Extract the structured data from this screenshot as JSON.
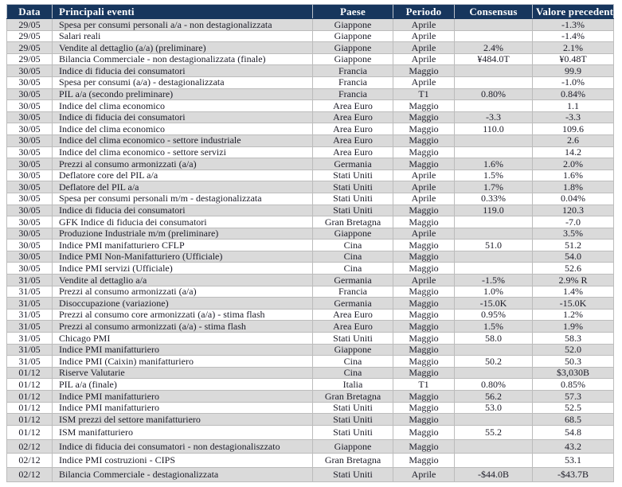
{
  "colors": {
    "header_bg": "#17365d",
    "header_text": "#ffffff",
    "row_alt_bg": "#dadada",
    "row_base_bg": "#ffffff",
    "grid_border": "#bcbcbc",
    "body_text": "#1b1b27"
  },
  "table": {
    "columns": [
      {
        "key": "data",
        "label": "Data"
      },
      {
        "key": "evento",
        "label": "Principali eventi"
      },
      {
        "key": "paese",
        "label": "Paese"
      },
      {
        "key": "periodo",
        "label": "Periodo"
      },
      {
        "key": "consensus",
        "label": "Consensus"
      },
      {
        "key": "valore",
        "label": "Valore precedente"
      }
    ],
    "rows": [
      [
        "29/05",
        "Spesa per consumi personali a/a - non destagionalizzata",
        "Giappone",
        "Aprile",
        "",
        "-1.3%"
      ],
      [
        "29/05",
        "Salari reali",
        "Giappone",
        "Aprile",
        "",
        "-1.4%"
      ],
      [
        "29/05",
        "Vendite al dettaglio (a/a)  (preliminare)",
        "Giappone",
        "Aprile",
        "2.4%",
        "2.1%"
      ],
      [
        "29/05",
        "Bilancia Commerciale -  non destagionalizzata (finale)",
        "Giappone",
        "Aprile",
        "¥484.0T",
        "¥0.48T"
      ],
      [
        "30/05",
        "Indice di fiducia dei consumatori",
        "Francia",
        "Maggio",
        "",
        "99.9"
      ],
      [
        "30/05",
        "Spesa per consumi  (a/a) - destagionalizzata",
        "Francia",
        "Aprile",
        "",
        "-1.0%"
      ],
      [
        "30/05",
        "PIL a/a (secondo preliminare)",
        "Francia",
        "T1",
        "0.80%",
        "0.84%"
      ],
      [
        "30/05",
        "Indice del clima economico",
        "Area Euro",
        "Maggio",
        "",
        "1.1"
      ],
      [
        "30/05",
        "Indice di fiducia dei consumatori",
        "Area Euro",
        "Maggio",
        "-3.3",
        "-3.3"
      ],
      [
        "30/05",
        "Indice del clima economico",
        "Area Euro",
        "Maggio",
        "110.0",
        "109.6"
      ],
      [
        "30/05",
        "Indice del clima economico - settore industriale",
        "Area Euro",
        "Maggio",
        "",
        "2.6"
      ],
      [
        "30/05",
        "Indice del clima economico - settore servizi",
        "Area Euro",
        "Maggio",
        "",
        "14.2"
      ],
      [
        "30/05",
        "Prezzi al consumo armonizzati (a/a)",
        "Germania",
        "Maggio",
        "1.6%",
        "2.0%"
      ],
      [
        "30/05",
        "Deflatore  core del PIL a/a",
        "Stati Uniti",
        "Aprile",
        "1.5%",
        "1.6%"
      ],
      [
        "30/05",
        "Deflatore del PIL a/a",
        "Stati Uniti",
        "Aprile",
        "1.7%",
        "1.8%"
      ],
      [
        "30/05",
        "Spesa per consumi personali m/m - destagionalizzata",
        "Stati Uniti",
        "Aprile",
        "0.33%",
        "0.04%"
      ],
      [
        "30/05",
        "Indice di fiducia dei consumatori",
        "Stati Uniti",
        "Maggio",
        "119.0",
        "120.3"
      ],
      [
        "30/05",
        "GFK Indice di fiducia dei consumatori",
        "Gran Bretagna",
        "Maggio",
        "",
        "-7.0"
      ],
      [
        "30/05",
        "Produzione Industriale m/m (preliminare)",
        "Giappone",
        "Aprile",
        "",
        "3.5%"
      ],
      [
        "30/05",
        "Indice PMI manifatturiero CFLP",
        "Cina",
        "Maggio",
        "51.0",
        "51.2"
      ],
      [
        "30/05",
        "Indice PMI  Non-Manifatturiero (Ufficiale)",
        "Cina",
        "Maggio",
        "",
        "54.0"
      ],
      [
        "30/05",
        "Indice PMI  servizi (Ufficiale)",
        "Cina",
        "Maggio",
        "",
        "52.6"
      ],
      [
        "31/05",
        "Vendite al dettaglio a/a",
        "Germania",
        "Aprile",
        "-1.5%",
        "2.9% R"
      ],
      [
        "31/05",
        "Prezzi al consumo armonizzati (a/a)",
        "Francia",
        "Maggio",
        "1.0%",
        "1.4%"
      ],
      [
        "31/05",
        "Disoccupazione (variazione)",
        "Germania",
        "Maggio",
        "-15.0K",
        "-15.0K"
      ],
      [
        "31/05",
        "Prezzi al consumo core armonizzati (a/a) - stima flash",
        "Area Euro",
        "Maggio",
        "0.95%",
        "1.2%"
      ],
      [
        "31/05",
        "Prezzi al consumo armonizzati (a/a) - stima flash",
        "Area Euro",
        "Maggio",
        "1.5%",
        "1.9%"
      ],
      [
        "31/05",
        "Chicago PMI",
        "Stati Uniti",
        "Maggio",
        "58.0",
        "58.3"
      ],
      [
        "31/05",
        "Indice PMI manifatturiero",
        "Giappone",
        "Maggio",
        "",
        "52.0"
      ],
      [
        "31/05",
        "Indice PMI (Caixin) manifatturiero",
        "Cina",
        "Maggio",
        "50.2",
        "50.3"
      ],
      [
        "01/12",
        "Riserve Valutarie",
        "Cina",
        "Maggio",
        "",
        "$3,030B"
      ],
      [
        "01/12",
        "PIL a/a (finale)",
        "Italia",
        "T1",
        "0.80%",
        "0.85%"
      ],
      [
        "01/12",
        "Indice PMI manifatturiero",
        "Gran Bretagna",
        "Maggio",
        "56.2",
        "57.3"
      ],
      [
        "01/12",
        "Indice PMI manifatturiero",
        "Stati Uniti",
        "Maggio",
        "53.0",
        "52.5"
      ],
      [
        "01/12",
        "ISM  prezzi del settore manifatturiero",
        "Stati Uniti",
        "Maggio",
        "",
        "68.5"
      ],
      [
        "01/12",
        "ISM manifatturiero",
        "Stati Uniti",
        "Maggio",
        "55.2",
        "54.8"
      ],
      [
        "02/12",
        "Indice di fiducia dei consumatori - non destagionaliszzato",
        "Giappone",
        "Maggio",
        "",
        "43.2"
      ],
      [
        "02/12",
        "Indice PMI costruzioni - CIPS",
        "Gran Bretagna",
        "Maggio",
        "",
        "53.1"
      ],
      [
        "02/12",
        "Bilancia Commerciale - destagionalizzata",
        "Stati Uniti",
        "Aprile",
        "-$44.0B",
        "-$43.7B"
      ]
    ],
    "tall_row_start_index": 35
  }
}
